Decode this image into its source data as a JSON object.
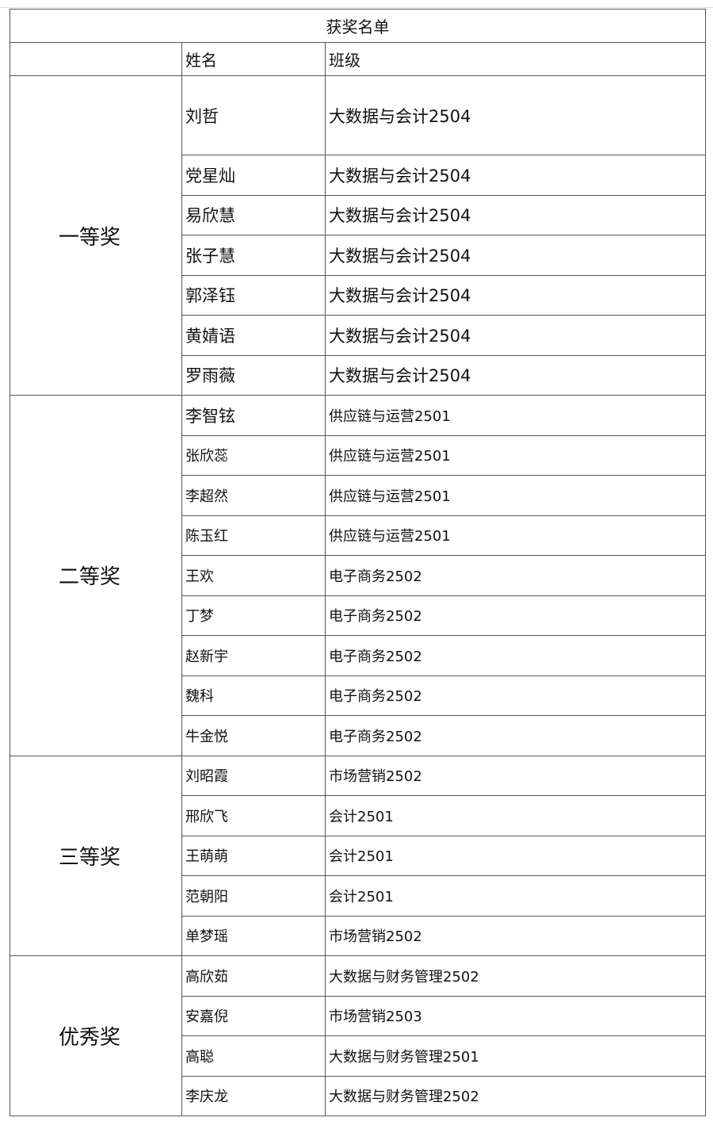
{
  "title": "获奖名单",
  "headers": {
    "blank": "",
    "name": "姓名",
    "class": "班级"
  },
  "groups": [
    {
      "award": "一等奖",
      "rows": [
        {
          "name": "刘哲",
          "class": "大数据与会计2504"
        },
        {
          "name": "党星灿",
          "class": "大数据与会计2504"
        },
        {
          "name": "易欣慧",
          "class": "大数据与会计2504"
        },
        {
          "name": "张子慧",
          "class": "大数据与会计2504"
        },
        {
          "name": "郭泽钰",
          "class": "大数据与会计2504"
        },
        {
          "name": "黄婧语",
          "class": "大数据与会计2504"
        },
        {
          "name": "罗雨薇",
          "class": "大数据与会计2504"
        }
      ]
    },
    {
      "award": "二等奖",
      "rows": [
        {
          "name": "李智铉",
          "class": "供应链与运营2501"
        },
        {
          "name": "张欣蕊",
          "class": "供应链与运营2501"
        },
        {
          "name": "李超然",
          "class": "供应链与运营2501"
        },
        {
          "name": "陈玉红",
          "class": "供应链与运营2501"
        },
        {
          "name": "王欢",
          "class": "电子商务2502"
        },
        {
          "name": "丁梦",
          "class": "电子商务2502"
        },
        {
          "name": "赵新宇",
          "class": "电子商务2502"
        },
        {
          "name": "魏科",
          "class": "电子商务2502"
        },
        {
          "name": "牛金悦",
          "class": "电子商务2502"
        }
      ]
    },
    {
      "award": "三等奖",
      "rows": [
        {
          "name": "刘昭霞",
          "class": "市场营销2502"
        },
        {
          "name": "邢欣飞",
          "class": "会计2501"
        },
        {
          "name": "王萌萌",
          "class": "会计2501"
        },
        {
          "name": "范朝阳",
          "class": "会计2501"
        },
        {
          "name": "单梦瑶",
          "class": "市场营销2502"
        }
      ]
    },
    {
      "award": "优秀奖",
      "rows": [
        {
          "name": "高欣茹",
          "class": "大数据与财务管理2502"
        },
        {
          "name": "安嘉倪",
          "class": "市场营销2503"
        },
        {
          "name": "高聪",
          "class": "大数据与财务管理2501"
        },
        {
          "name": "李庆龙",
          "class": "大数据与财务管理2502"
        }
      ]
    }
  ]
}
